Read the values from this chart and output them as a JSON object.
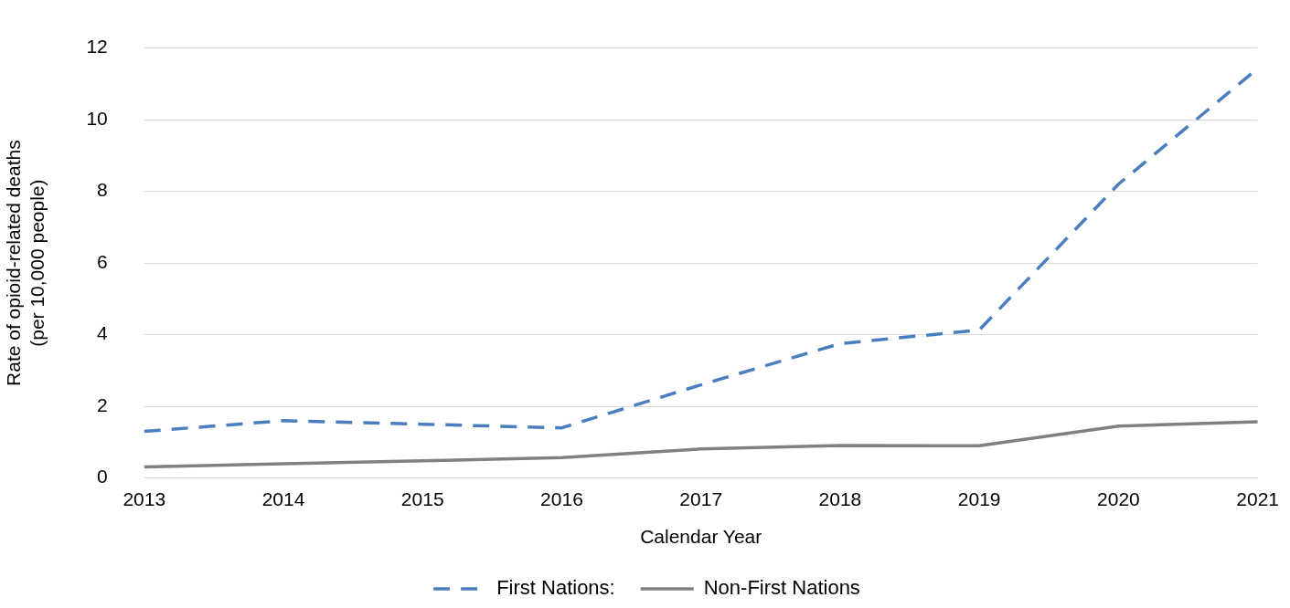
{
  "chart_data": {
    "type": "line",
    "xlabel": "Calendar Year",
    "ylabel": "Rate of opioid-related deaths\n(per 10,000 people)",
    "categories": [
      "2013",
      "2014",
      "2015",
      "2016",
      "2017",
      "2018",
      "2019",
      "2020",
      "2021"
    ],
    "series": [
      {
        "name": "First Nations:",
        "color": "#4a7ebf",
        "line_style": "dashed",
        "values": [
          1.3,
          1.6,
          1.5,
          1.4,
          2.6,
          3.75,
          4.13,
          8.2,
          11.43
        ]
      },
      {
        "name": "Non-First Nations",
        "color": "#808080",
        "line_style": "solid",
        "values": [
          0.31,
          0.4,
          0.48,
          0.57,
          0.81,
          0.91,
          0.9,
          1.45,
          1.57
        ]
      }
    ],
    "ylim": [
      0,
      12
    ],
    "yticks": [
      0,
      2,
      4,
      6,
      8,
      10,
      12
    ],
    "grid": "y",
    "legend": "bottom",
    "marker": "none"
  }
}
